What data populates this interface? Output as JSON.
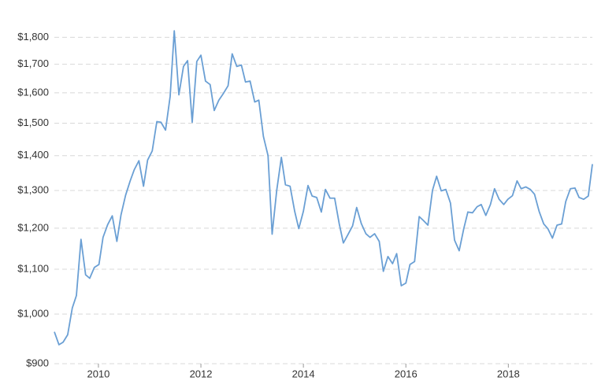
{
  "chart_data": {
    "type": "line",
    "log_scale": true,
    "grid": true,
    "x": [
      2009.14,
      2009.23,
      2009.31,
      2009.4,
      2009.49,
      2009.57,
      2009.66,
      2009.75,
      2009.83,
      2009.92,
      2010.01,
      2010.09,
      2010.18,
      2010.27,
      2010.36,
      2010.44,
      2010.53,
      2010.62,
      2010.7,
      2010.79,
      2010.88,
      2010.96,
      2011.05,
      2011.14,
      2011.22,
      2011.31,
      2011.4,
      2011.48,
      2011.57,
      2011.66,
      2011.74,
      2011.83,
      2011.92,
      2012.0,
      2012.09,
      2012.18,
      2012.26,
      2012.35,
      2012.44,
      2012.53,
      2012.61,
      2012.7,
      2012.79,
      2012.87,
      2012.96,
      2013.05,
      2013.13,
      2013.22,
      2013.31,
      2013.39,
      2013.48,
      2013.57,
      2013.65,
      2013.74,
      2013.83,
      2013.91,
      2014.0,
      2014.09,
      2014.17,
      2014.26,
      2014.35,
      2014.43,
      2014.52,
      2014.61,
      2014.7,
      2014.78,
      2014.87,
      2014.96,
      2015.04,
      2015.13,
      2015.22,
      2015.3,
      2015.39,
      2015.48,
      2015.56,
      2015.65,
      2015.74,
      2015.82,
      2015.91,
      2016.0,
      2016.08,
      2016.17,
      2016.26,
      2016.34,
      2016.43,
      2016.52,
      2016.6,
      2016.69,
      2016.78,
      2016.87,
      2016.95,
      2017.04,
      2017.13,
      2017.21,
      2017.3,
      2017.39,
      2017.47,
      2017.56,
      2017.65,
      2017.73,
      2017.82,
      2017.91,
      2017.99,
      2018.08,
      2018.17,
      2018.25,
      2018.34,
      2018.43,
      2018.51,
      2018.6,
      2018.69,
      2018.77,
      2018.86,
      2018.95,
      2019.04,
      2019.12,
      2019.21,
      2019.3,
      2019.38,
      2019.47,
      2019.56,
      2019.64
    ],
    "series": [
      {
        "color": "#6a9fd4",
        "values": [
          963,
          937,
          942,
          957,
          1013,
          1040,
          1172,
          1087,
          1079,
          1104,
          1111,
          1177,
          1209,
          1232,
          1167,
          1234,
          1287,
          1327,
          1359,
          1385,
          1312,
          1387,
          1414,
          1505,
          1503,
          1478,
          1588,
          1825,
          1593,
          1692,
          1713,
          1503,
          1710,
          1733,
          1640,
          1628,
          1541,
          1575,
          1598,
          1624,
          1738,
          1692,
          1697,
          1637,
          1640,
          1569,
          1575,
          1458,
          1400,
          1185,
          1301,
          1395,
          1316,
          1312,
          1244,
          1199,
          1244,
          1314,
          1285,
          1281,
          1242,
          1303,
          1279,
          1279,
          1211,
          1163,
          1184,
          1206,
          1254,
          1212,
          1186,
          1177,
          1186,
          1167,
          1095,
          1130,
          1113,
          1137,
          1062,
          1068,
          1111,
          1118,
          1230,
          1220,
          1208,
          1301,
          1340,
          1299,
          1303,
          1266,
          1170,
          1144,
          1199,
          1242,
          1240,
          1256,
          1262,
          1233,
          1262,
          1305,
          1276,
          1262,
          1276,
          1286,
          1327,
          1305,
          1310,
          1303,
          1290,
          1244,
          1211,
          1199,
          1175,
          1208,
          1211,
          1270,
          1305,
          1307,
          1281,
          1276,
          1285,
          1375
        ]
      }
    ],
    "xlim": [
      2009.14,
      2019.64
    ],
    "xticks": [
      2010,
      2012,
      2014,
      2016,
      2018
    ],
    "ylim": [
      900,
      1850
    ],
    "yticks": [
      {
        "value": 900,
        "label": "$900"
      },
      {
        "value": 1000,
        "label": "$1,000"
      },
      {
        "value": 1100,
        "label": "$1,100"
      },
      {
        "value": 1200,
        "label": "$1,200"
      },
      {
        "value": 1300,
        "label": "$1,300"
      },
      {
        "value": 1400,
        "label": "$1,400"
      },
      {
        "value": 1500,
        "label": "$1,500"
      },
      {
        "value": 1600,
        "label": "$1,600"
      },
      {
        "value": 1700,
        "label": "$1,700"
      },
      {
        "value": 1800,
        "label": "$1,800"
      }
    ]
  }
}
